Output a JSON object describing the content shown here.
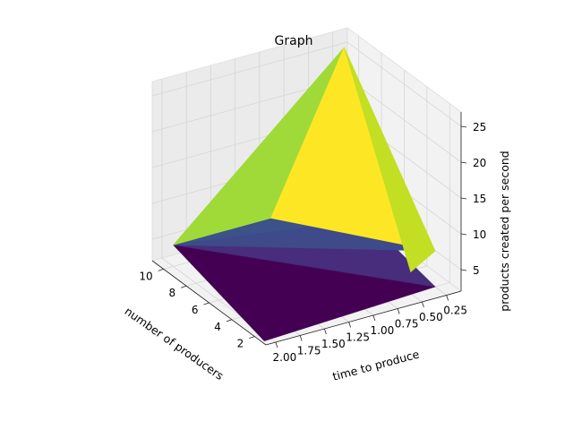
{
  "chart_data": {
    "type": "surface3d",
    "title": "Graph",
    "xlabel": "number of producers",
    "ylabel": "time to produce",
    "zlabel": "products created per second",
    "x_ticks": [
      "2",
      "4",
      "6",
      "8",
      "10"
    ],
    "y_ticks": [
      "0.25",
      "0.50",
      "0.75",
      "1.00",
      "1.25",
      "1.50",
      "1.75",
      "2.00"
    ],
    "z_ticks": [
      "5",
      "10",
      "15",
      "20",
      "25"
    ],
    "xlim": [
      1,
      11
    ],
    "ylim": [
      0.1,
      2.1
    ],
    "zlim": [
      2,
      27
    ],
    "grid": true,
    "colormap": "viridis",
    "colors": {
      "pane": "#f2f2f2",
      "pane_side": "#ebebeb",
      "grid": "#d6d6d6",
      "edge": "#555555"
    },
    "faces": [
      {
        "vertices": [
          [
            2,
            2.0,
            1
          ],
          [
            10,
            2.0,
            5
          ],
          [
            10,
            0.25,
            2
          ],
          [
            2,
            0.25,
            2
          ]
        ],
        "color": "#440154"
      },
      {
        "vertices": [
          [
            2,
            0.25,
            2
          ],
          [
            10,
            0.25,
            5
          ],
          [
            10,
            2.0,
            5
          ]
        ],
        "color": "#472d7b"
      },
      {
        "vertices": [
          [
            10,
            2.0,
            5
          ],
          [
            10,
            0.25,
            5
          ],
          [
            6,
            0.25,
            7
          ]
        ],
        "color": "#3b528b"
      },
      {
        "vertices": [
          [
            10,
            2.0,
            5
          ],
          [
            6,
            0.25,
            7
          ],
          [
            2,
            0.25,
            7
          ]
        ],
        "color": "#3e4a89"
      },
      {
        "vertices": [
          [
            10,
            2.0,
            5
          ],
          [
            10,
            1.0,
            5
          ],
          [
            10,
            0.25,
            26
          ]
        ],
        "color": "#a0da39"
      },
      {
        "vertices": [
          [
            10,
            1.0,
            5
          ],
          [
            2,
            0.25,
            7
          ],
          [
            10,
            0.25,
            26
          ]
        ],
        "color": "#fde725"
      },
      {
        "vertices": [
          [
            2,
            0.25,
            7
          ],
          [
            2,
            0.5,
            5
          ],
          [
            10,
            0.25,
            26
          ]
        ],
        "color": "#c2df23"
      }
    ]
  }
}
